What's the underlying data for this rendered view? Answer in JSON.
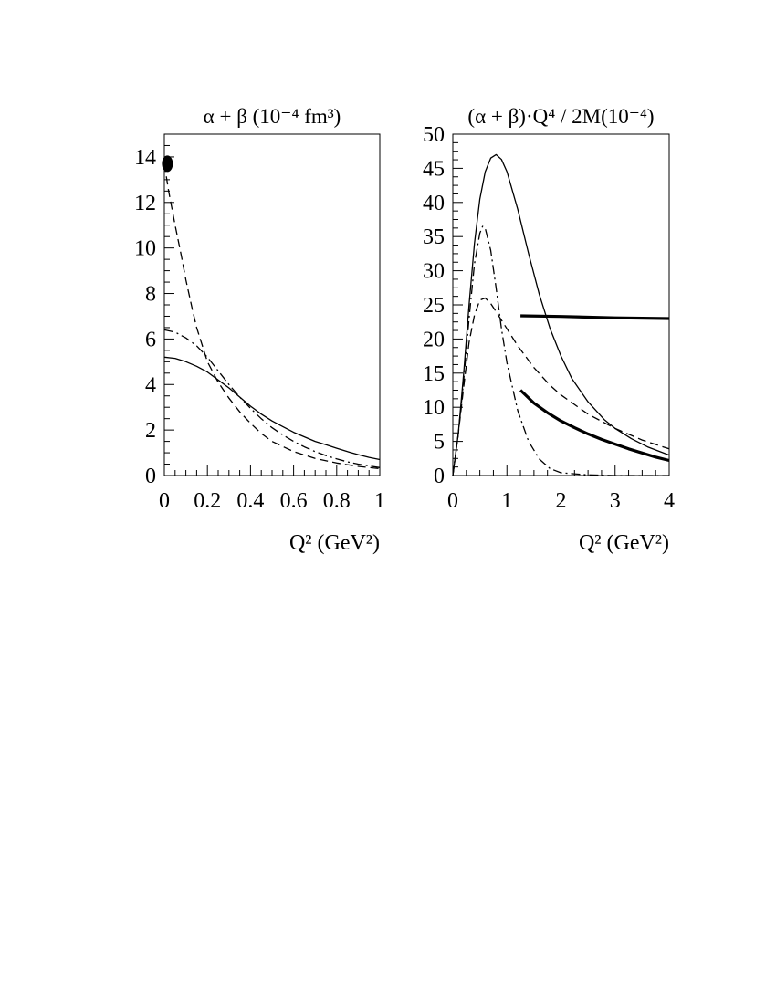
{
  "chart_data": [
    {
      "type": "line",
      "title": "α + β (10⁻⁴ fm³)",
      "xlabel": "Q² (GeV²)",
      "ylabel": "",
      "xlim": [
        0,
        1
      ],
      "ylim": [
        0,
        15
      ],
      "xticks": [
        "0",
        "0.2",
        "0.4",
        "0.6",
        "0.8",
        "1"
      ],
      "yticks": [
        "0",
        "2",
        "4",
        "6",
        "8",
        "10",
        "12",
        "14"
      ],
      "ytick_values": [
        0,
        2,
        4,
        6,
        8,
        10,
        12,
        14
      ],
      "xtick_values": [
        0,
        0.2,
        0.4,
        0.6,
        0.8,
        1
      ],
      "grid": false,
      "series": [
        {
          "style": "solid",
          "x": [
            0,
            0.05,
            0.1,
            0.15,
            0.2,
            0.25,
            0.3,
            0.35,
            0.4,
            0.45,
            0.5,
            0.55,
            0.6,
            0.65,
            0.7,
            0.75,
            0.8,
            0.85,
            0.9,
            0.95,
            1.0
          ],
          "y": [
            5.2,
            5.15,
            5.0,
            4.8,
            4.55,
            4.2,
            3.85,
            3.45,
            3.05,
            2.7,
            2.4,
            2.15,
            1.9,
            1.7,
            1.5,
            1.35,
            1.2,
            1.05,
            0.92,
            0.8,
            0.7
          ]
        },
        {
          "style": "dash",
          "x": [
            0,
            0.02,
            0.05,
            0.08,
            0.1,
            0.13,
            0.15,
            0.18,
            0.2,
            0.25,
            0.3,
            0.35,
            0.4,
            0.45,
            0.5,
            0.6,
            0.7,
            0.8,
            0.9,
            1.0
          ],
          "y": [
            13.7,
            12.5,
            11.0,
            9.6,
            8.6,
            7.3,
            6.5,
            5.6,
            5.0,
            4.1,
            3.4,
            2.8,
            2.3,
            1.85,
            1.5,
            1.05,
            0.75,
            0.55,
            0.4,
            0.3
          ]
        },
        {
          "style": "dashdot",
          "x": [
            0,
            0.05,
            0.1,
            0.15,
            0.2,
            0.25,
            0.3,
            0.35,
            0.4,
            0.45,
            0.5,
            0.55,
            0.6,
            0.65,
            0.7,
            0.75,
            0.8,
            0.85,
            0.9,
            0.95,
            1.0
          ],
          "y": [
            6.4,
            6.3,
            6.05,
            5.7,
            5.2,
            4.6,
            4.0,
            3.45,
            2.95,
            2.5,
            2.1,
            1.78,
            1.5,
            1.26,
            1.05,
            0.88,
            0.73,
            0.6,
            0.5,
            0.42,
            0.35
          ]
        }
      ],
      "points": [
        {
          "x": 0.01,
          "y": 13.7
        }
      ]
    },
    {
      "type": "line",
      "title": "(α + β)·Q⁴ / 2M(10⁻⁴)",
      "xlabel": "Q² (GeV²)",
      "ylabel": "",
      "xlim": [
        0,
        4
      ],
      "ylim": [
        0,
        50
      ],
      "xticks": [
        "0",
        "1",
        "2",
        "3",
        "4"
      ],
      "yticks": [
        "0",
        "5",
        "10",
        "15",
        "20",
        "25",
        "30",
        "35",
        "40",
        "45",
        "50"
      ],
      "ytick_values": [
        0,
        5,
        10,
        15,
        20,
        25,
        30,
        35,
        40,
        45,
        50
      ],
      "xtick_values": [
        0,
        1,
        2,
        3,
        4
      ],
      "grid": false,
      "series": [
        {
          "style": "solid",
          "x": [
            0,
            0.1,
            0.2,
            0.3,
            0.4,
            0.5,
            0.6,
            0.7,
            0.8,
            0.9,
            1.0,
            1.2,
            1.4,
            1.6,
            1.8,
            2.0,
            2.2,
            2.5,
            2.8,
            3.0,
            3.3,
            3.6,
            4.0
          ],
          "y": [
            0,
            6,
            15,
            25,
            34,
            40.5,
            44.5,
            46.5,
            47,
            46.3,
            44.5,
            39,
            32.5,
            26.5,
            21.5,
            17.5,
            14.2,
            10.8,
            8.2,
            6.9,
            5.4,
            4.2,
            3.0
          ]
        },
        {
          "style": "dash",
          "x": [
            0,
            0.1,
            0.2,
            0.3,
            0.4,
            0.5,
            0.6,
            0.7,
            0.8,
            1.0,
            1.2,
            1.5,
            1.8,
            2.0,
            2.5,
            3.0,
            3.5,
            4.0
          ],
          "y": [
            0,
            6,
            13,
            19.5,
            23.5,
            25.7,
            26,
            25.2,
            24,
            21.5,
            19,
            15.8,
            13.2,
            11.8,
            9.0,
            6.9,
            5.2,
            3.9
          ]
        },
        {
          "style": "dashdot",
          "x": [
            0,
            0.1,
            0.2,
            0.3,
            0.4,
            0.5,
            0.55,
            0.6,
            0.7,
            0.8,
            0.9,
            1.0,
            1.2,
            1.4,
            1.6,
            1.8,
            2.0,
            2.5,
            3.0,
            3.5,
            4.0
          ],
          "y": [
            0,
            6,
            14,
            23,
            31,
            35.5,
            36.5,
            36.2,
            33,
            27.5,
            21.5,
            16.5,
            9.5,
            5.0,
            2.4,
            1.0,
            0.4,
            0.1,
            0.0,
            0.0,
            0.0
          ]
        },
        {
          "style": "thick",
          "x": [
            1.25,
            1.5,
            1.75,
            2.0,
            2.25,
            2.5,
            2.75,
            3.0,
            3.25,
            3.5,
            3.75,
            4.0
          ],
          "y": [
            12.5,
            10.6,
            9.2,
            8.0,
            7.0,
            6.1,
            5.3,
            4.6,
            3.9,
            3.3,
            2.7,
            2.2
          ]
        },
        {
          "style": "thick",
          "x": [
            1.25,
            2.0,
            3.0,
            4.0
          ],
          "y": [
            23.4,
            23.3,
            23.1,
            23.0
          ]
        }
      ]
    }
  ]
}
